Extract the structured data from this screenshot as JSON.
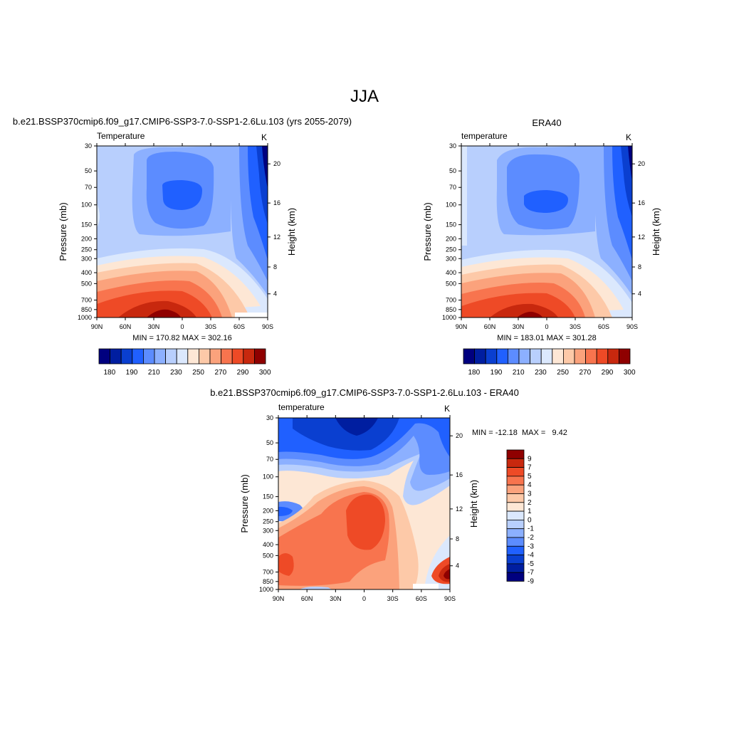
{
  "figure_title": "JJA",
  "chart_data": [
    {
      "type": "heatmap",
      "id": "model",
      "title": "b.e21.BSSP370cmip6.f09_g17.CMIP6-SSP3-7.0-SSP1-2.6Lu.103 (yrs 2055-2079)",
      "subtitle_left": "Temperature",
      "subtitle_right": "K",
      "ylabel": "Pressure (mb)",
      "ylabel_right": "Height (km)",
      "x_ticks": [
        "90N",
        "60N",
        "30N",
        "0",
        "30S",
        "60S",
        "90S"
      ],
      "y_ticks": [
        "30",
        "50",
        "70",
        "100",
        "150",
        "200",
        "250",
        "300",
        "400",
        "500",
        "700",
        "850",
        "1000"
      ],
      "height_ticks": [
        "20",
        "16",
        "12",
        "8",
        "4"
      ],
      "stats": "MIN = 170.82  MAX = 302.16",
      "colorbar_labels": [
        "180",
        "190",
        "210",
        "230",
        "250",
        "270",
        "290",
        "300"
      ],
      "value_range": [
        170.82,
        302.16
      ]
    },
    {
      "type": "heatmap",
      "id": "obs",
      "title": "ERA40",
      "subtitle_left": "temperature",
      "subtitle_right": "K",
      "ylabel": "Pressure (mb)",
      "ylabel_right": "Height (km)",
      "x_ticks": [
        "90N",
        "60N",
        "30N",
        "0",
        "30S",
        "60S",
        "90S"
      ],
      "y_ticks": [
        "30",
        "50",
        "70",
        "100",
        "150",
        "200",
        "250",
        "300",
        "400",
        "500",
        "700",
        "850",
        "1000"
      ],
      "height_ticks": [
        "20",
        "16",
        "12",
        "8",
        "4"
      ],
      "stats": "MIN = 183.01  MAX = 301.28",
      "colorbar_labels": [
        "180",
        "190",
        "210",
        "230",
        "250",
        "270",
        "290",
        "300"
      ],
      "value_range": [
        183.01,
        301.28
      ]
    },
    {
      "type": "heatmap",
      "id": "diff",
      "title": "b.e21.BSSP370cmip6.f09_g17.CMIP6-SSP3-7.0-SSP1-2.6Lu.103 - ERA40",
      "subtitle_left": "temperature",
      "subtitle_right": "K",
      "ylabel": "Pressure (mb)",
      "ylabel_right": "Height (km)",
      "x_ticks": [
        "90N",
        "60N",
        "30N",
        "0",
        "30S",
        "60S",
        "90S"
      ],
      "y_ticks": [
        "30",
        "50",
        "70",
        "100",
        "150",
        "200",
        "250",
        "300",
        "400",
        "500",
        "700",
        "850",
        "1000"
      ],
      "height_ticks": [
        "20",
        "16",
        "12",
        "8",
        "4"
      ],
      "stats": "MIN = -12.18  MAX =   9.42",
      "colorbar_labels": [
        "9",
        "7",
        "5",
        "4",
        "3",
        "2",
        "1",
        "0",
        "-1",
        "-2",
        "-3",
        "-4",
        "-5",
        "-7",
        "-9"
      ],
      "value_range": [
        -12.18,
        9.42
      ]
    }
  ],
  "colors": {
    "palette": [
      "#00007f",
      "#001ea0",
      "#0a3fd0",
      "#2060ff",
      "#5c8cff",
      "#8cb0ff",
      "#b8cffd",
      "#dbe8fd",
      "#fde7d5",
      "#fdc9a8",
      "#fba27c",
      "#f8744e",
      "#ee4a26",
      "#c8280e",
      "#8f0000"
    ]
  }
}
